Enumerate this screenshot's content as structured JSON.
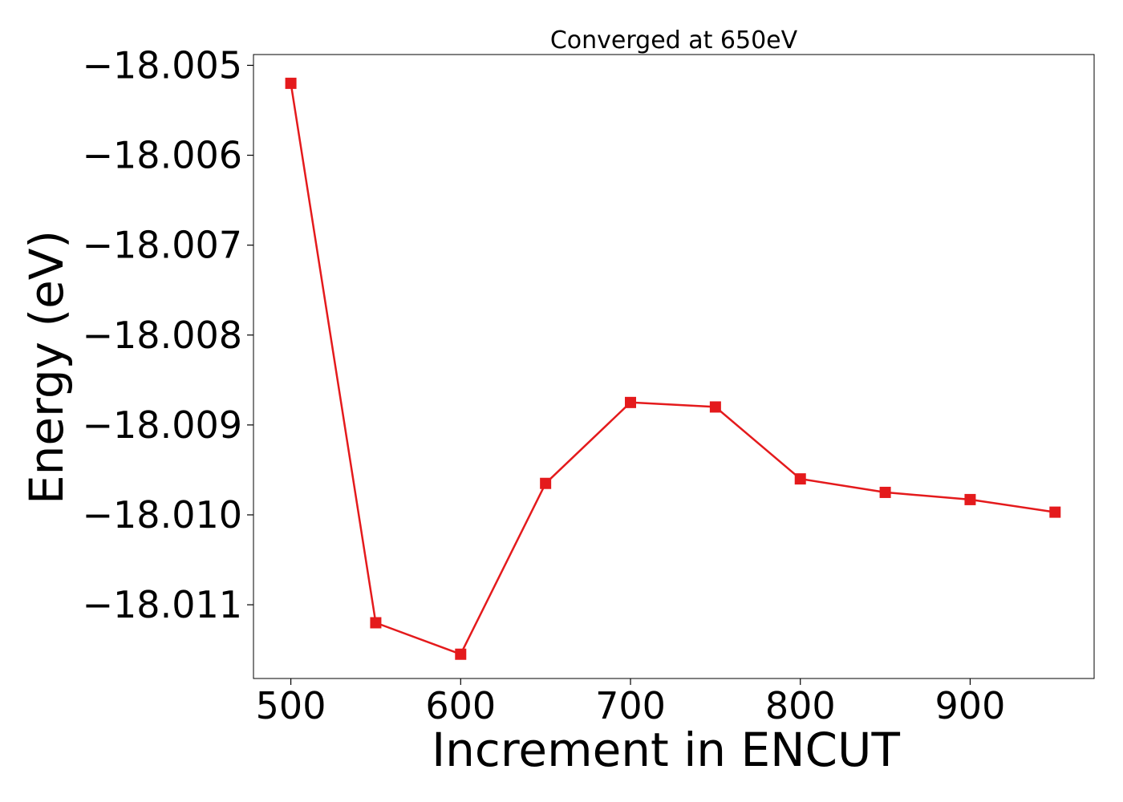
{
  "chart_data": {
    "type": "line",
    "title": "Converged at 650eV",
    "xlabel": "Increment in ENCUT",
    "ylabel": "Energy (eV)",
    "x": [
      500,
      550,
      600,
      650,
      700,
      750,
      800,
      850,
      900,
      950
    ],
    "series": [
      {
        "values": [
          -18.0052,
          -18.0112,
          -18.01155,
          -18.00965,
          -18.00875,
          -18.0088,
          -18.0096,
          -18.00975,
          -18.00983,
          -18.00997
        ],
        "color": "#e41a1c",
        "marker": "square"
      }
    ],
    "xlim": [
      478,
      973
    ],
    "ylim": [
      -18.01182,
      -18.00488
    ],
    "xticks": [
      500,
      600,
      700,
      800,
      900
    ],
    "xtick_labels": [
      "500",
      "600",
      "700",
      "800",
      "900"
    ],
    "yticks": [
      -18.005,
      -18.006,
      -18.007,
      -18.008,
      -18.009,
      -18.01,
      -18.011
    ],
    "ytick_labels": [
      "−18.005",
      "−18.006",
      "−18.007",
      "−18.008",
      "−18.009",
      "−18.010",
      "−18.011"
    ],
    "grid": false,
    "legend": "none"
  }
}
